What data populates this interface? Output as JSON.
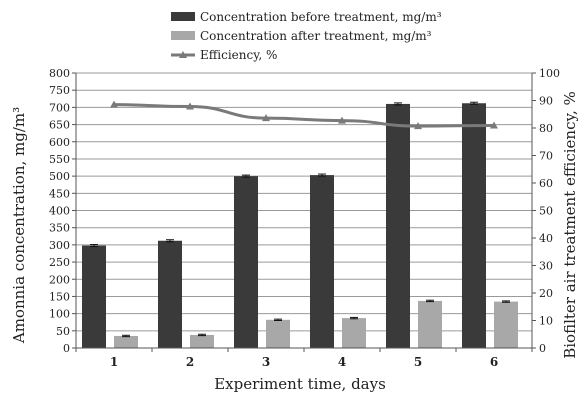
{
  "chart_data": {
    "type": "bar",
    "categories": [
      "1",
      "2",
      "3",
      "4",
      "5",
      "6"
    ],
    "xlabel": "Experiment time, days",
    "ylabel_left": "Amonnia concentration, mg/m³",
    "ylabel_right": "Biofilter air treatment efficiency, %",
    "ylim_left": [
      0,
      800
    ],
    "yticks_left": [
      0,
      50,
      100,
      150,
      200,
      250,
      300,
      350,
      400,
      450,
      500,
      550,
      600,
      650,
      700,
      750,
      800
    ],
    "ylim_right": [
      0,
      100
    ],
    "yticks_right": [
      0,
      10,
      20,
      30,
      40,
      50,
      60,
      70,
      80,
      90,
      100
    ],
    "grid": true,
    "legend_position": "top",
    "series": [
      {
        "name": "Concentration before treatment, mg/m³",
        "kind": "bar",
        "axis": "left",
        "color": "#3a3a3a",
        "values": [
          298,
          312,
          500,
          503,
          710,
          712
        ],
        "error": [
          3,
          3,
          3,
          3,
          3,
          3
        ]
      },
      {
        "name": "Concentration after treatment, mg/m³",
        "kind": "bar",
        "axis": "left",
        "color": "#a8a8a8",
        "values": [
          35,
          38,
          82,
          87,
          137,
          135
        ],
        "error": [
          2,
          2,
          2,
          2,
          2,
          2
        ]
      },
      {
        "name": "Efficiency, %",
        "kind": "line",
        "axis": "right",
        "color": "#7a7a7a",
        "values": [
          88.5,
          87.8,
          83.6,
          82.7,
          80.7,
          80.9
        ]
      }
    ]
  }
}
